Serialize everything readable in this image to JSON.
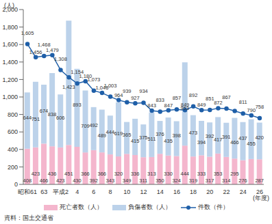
{
  "chart_data": {
    "type": "bar",
    "stacked": true,
    "grid": false,
    "data_labels": true,
    "y_unit": "(人)",
    "x_unit": "(年度)",
    "source": "資料：国土交通省",
    "categories": [
      "昭和61",
      null,
      "63",
      null,
      "平成2",
      null,
      "4",
      null,
      "6",
      null,
      "8",
      null,
      "10",
      null,
      "12",
      null,
      "14",
      null,
      "16",
      null,
      "18",
      null,
      "20",
      null,
      "22",
      null,
      "24",
      null,
      "26"
    ],
    "ylim": [
      0,
      2000
    ],
    "yticks": [
      0,
      200,
      400,
      600,
      800,
      {
        "value": 1000,
        "label": "1,000"
      },
      {
        "value": 1200,
        "label": "1,200"
      },
      {
        "value": 1400,
        "label": "1,400"
      },
      {
        "value": 1600,
        "label": "1,600"
      },
      {
        "value": 1800,
        "label": "1,800"
      },
      {
        "value": 2000,
        "label": "2,000"
      }
    ],
    "series": [
      {
        "name": "死亡者数（人）",
        "type": "bar",
        "color": "#f4b6cd",
        "values": [
          408,
          423,
          466,
          436,
          423,
          451,
          430,
          366,
          392,
          366,
          343,
          320,
          349,
          336,
          311,
          313,
          350,
          330,
          324,
          444,
          319,
          333,
          317,
          353,
          314,
          295,
          276,
          290,
          287
        ],
        "value_labels": [
          "408",
          "423",
          "466",
          "436",
          "423",
          "451",
          "430",
          "366",
          "392",
          "366",
          "343",
          "320",
          "349",
          "336",
          "311",
          "313",
          "350",
          "330",
          "324",
          "444",
          "319",
          "333",
          "317",
          "353",
          "314",
          "295",
          "276",
          null,
          "287"
        ]
      },
      {
        "name": "負傷者数（人）",
        "type": "bar",
        "color": "#bcd2ea",
        "values": [
          644,
          751,
          674,
          838,
          606,
          1423,
          893,
          709,
          492,
          489,
          444,
          619,
          365,
          415,
          375,
          511,
          376,
          435,
          398,
          953,
          473,
          394,
          392,
          417,
          391,
          466,
          437,
          455,
          420
        ],
        "value_labels": [
          "644",
          "751",
          "674",
          "838",
          "606",
          "1,423",
          "893",
          "709",
          "492",
          "489",
          "444",
          "619",
          "365",
          "415",
          "375",
          "511",
          "376",
          "435",
          "398",
          "953",
          "473",
          "394",
          "392",
          "417",
          "391",
          "466",
          "437",
          "455",
          "420"
        ]
      },
      {
        "name": "件数（件）",
        "type": "line",
        "color": "#1f5fa8",
        "marker": "circle",
        "values": [
          1605,
          1456,
          1468,
          1479,
          1308,
          1225,
          1154,
          1180,
          1073,
          1046,
          1003,
          964,
          939,
          927,
          934,
          843,
          833,
          847,
          857,
          849,
          892,
          849,
          851,
          872,
          867,
          840,
          811,
          790,
          758
        ],
        "value_labels": [
          "1,605",
          "1,456",
          "1,468",
          "1,479",
          "1,308",
          null,
          "1,154",
          "1,180",
          "1,073",
          "1,046",
          "1,003",
          "964",
          "939",
          "927",
          "934",
          "843",
          "833",
          "847",
          "857",
          "849",
          "892",
          "849",
          "851",
          "872",
          "867",
          null,
          "811",
          "790",
          "758"
        ]
      }
    ]
  }
}
